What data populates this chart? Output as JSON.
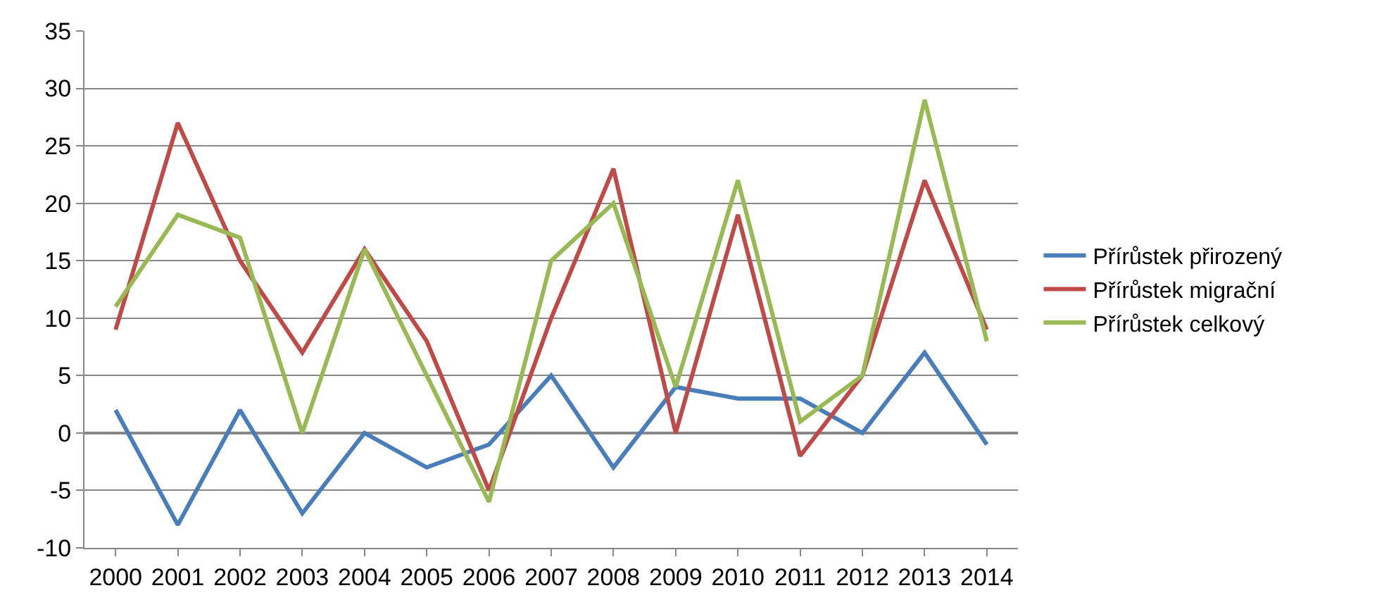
{
  "chart_data": {
    "type": "line",
    "categories": [
      "2000",
      "2001",
      "2002",
      "2003",
      "2004",
      "2005",
      "2006",
      "2007",
      "2008",
      "2009",
      "2010",
      "2011",
      "2012",
      "2013",
      "2014"
    ],
    "series": [
      {
        "name": "Přírůstek přirozený",
        "color": "#4a7ebb",
        "values": [
          2,
          -8,
          2,
          -7,
          0,
          -3,
          -1,
          5,
          -3,
          4,
          3,
          3,
          0,
          7,
          -1
        ]
      },
      {
        "name": "Přírůstek migrační",
        "color": "#be4b48",
        "values": [
          9,
          27,
          15,
          7,
          16,
          8,
          -5,
          10,
          23,
          0,
          19,
          -2,
          5,
          22,
          9
        ]
      },
      {
        "name": "Přírůstek celkový",
        "color": "#98b954",
        "values": [
          11,
          19,
          17,
          0,
          16,
          5,
          -6,
          15,
          20,
          4,
          22,
          1,
          5,
          29,
          8
        ]
      }
    ],
    "ylim": [
      -10,
      35
    ],
    "yticks": [
      -10,
      -5,
      0,
      5,
      10,
      15,
      20,
      25,
      30,
      35
    ],
    "grid": "y",
    "legend": "right",
    "marker": "none",
    "line_style": "solid"
  }
}
